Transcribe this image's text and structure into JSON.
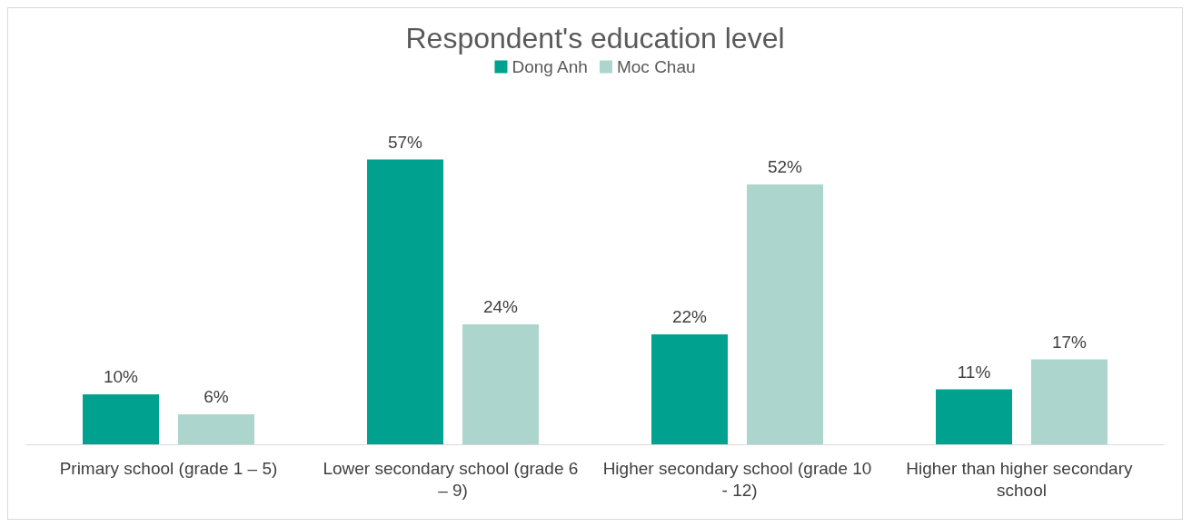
{
  "chart_data": {
    "type": "bar",
    "title": "Respondent's education level",
    "categories": [
      "Primary school (grade 1 – 5)",
      "Lower secondary school (grade 6 – 9)",
      "Higher secondary school (grade 10 - 12)",
      "Higher than higher secondary school"
    ],
    "series": [
      {
        "name": "Dong Anh",
        "color": "#00a28f",
        "values": [
          10,
          57,
          22,
          11
        ],
        "value_labels": [
          "10%",
          "57%",
          "22%",
          "11%"
        ]
      },
      {
        "name": "Moc Chau",
        "color": "#acd5cd",
        "values": [
          6,
          24,
          52,
          17
        ],
        "value_labels": [
          "6%",
          "24%",
          "52%",
          "17%"
        ]
      }
    ],
    "legend": "top",
    "grid": false
  }
}
